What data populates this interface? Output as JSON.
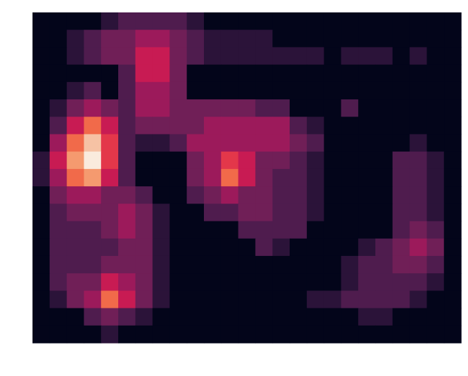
{
  "chart_data": {
    "type": "heatmap",
    "zlim": [
      0,
      10
    ],
    "colorscale": [
      "#03051a",
      "#2b1339",
      "#4f1c4e",
      "#701f57",
      "#9c1a5b",
      "#c81b53",
      "#e3374a",
      "#f16a4a",
      "#f59a6f",
      "#f6c2a4",
      "#faebdd"
    ],
    "values": [
      [
        0,
        0,
        0,
        0,
        1,
        2,
        2,
        2,
        2,
        1,
        0,
        0,
        0,
        0,
        0,
        0,
        0,
        0,
        0,
        0,
        0,
        0,
        0,
        0,
        0
      ],
      [
        0,
        0,
        1,
        2,
        3,
        3,
        4,
        4,
        3,
        2,
        1,
        1,
        1,
        1,
        0,
        0,
        0,
        0,
        0,
        0,
        0,
        0,
        0,
        0,
        0
      ],
      [
        0,
        0,
        1,
        2,
        3,
        3,
        5,
        5,
        3,
        2,
        1,
        1,
        1,
        1,
        1,
        1,
        1,
        0,
        1,
        1,
        1,
        0,
        1,
        0,
        0
      ],
      [
        0,
        0,
        0,
        0,
        0,
        2,
        5,
        5,
        3,
        0,
        0,
        0,
        0,
        0,
        0,
        0,
        0,
        0,
        0,
        0,
        0,
        0,
        0,
        0,
        0
      ],
      [
        0,
        0,
        1,
        2,
        0,
        2,
        4,
        4,
        3,
        0,
        0,
        0,
        0,
        0,
        0,
        0,
        0,
        0,
        0,
        0,
        0,
        0,
        0,
        0,
        0
      ],
      [
        0,
        1,
        3,
        4,
        3,
        2,
        4,
        4,
        3,
        3,
        3,
        3,
        3,
        2,
        2,
        0,
        0,
        0,
        2,
        0,
        0,
        0,
        0,
        0,
        0
      ],
      [
        0,
        2,
        5,
        7,
        5,
        2,
        3,
        3,
        3,
        3,
        4,
        4,
        4,
        4,
        4,
        2,
        1,
        0,
        0,
        0,
        0,
        0,
        0,
        0,
        0
      ],
      [
        0,
        4,
        7,
        9,
        6,
        2,
        1,
        1,
        2,
        4,
        4,
        4,
        4,
        4,
        4,
        3,
        2,
        0,
        0,
        0,
        0,
        0,
        1,
        0,
        0
      ],
      [
        1,
        5,
        8,
        10,
        6,
        2,
        0,
        0,
        0,
        3,
        4,
        6,
        5,
        3,
        3,
        2,
        1,
        0,
        0,
        0,
        0,
        2,
        2,
        1,
        0
      ],
      [
        1,
        4,
        7,
        8,
        5,
        2,
        0,
        0,
        0,
        3,
        4,
        7,
        5,
        3,
        2,
        2,
        1,
        0,
        0,
        0,
        0,
        2,
        2,
        1,
        0
      ],
      [
        0,
        3,
        4,
        4,
        3,
        3,
        2,
        0,
        0,
        2,
        3,
        4,
        3,
        3,
        2,
        2,
        1,
        0,
        0,
        0,
        0,
        2,
        2,
        1,
        0
      ],
      [
        0,
        2,
        3,
        3,
        3,
        4,
        3,
        1,
        0,
        0,
        2,
        2,
        3,
        3,
        2,
        2,
        1,
        0,
        0,
        0,
        0,
        2,
        2,
        1,
        0
      ],
      [
        0,
        2,
        2,
        2,
        3,
        4,
        3,
        1,
        0,
        0,
        0,
        0,
        2,
        2,
        2,
        2,
        0,
        0,
        0,
        0,
        0,
        2,
        3,
        2,
        0
      ],
      [
        0,
        2,
        2,
        2,
        2,
        3,
        3,
        1,
        0,
        0,
        0,
        0,
        0,
        2,
        1,
        0,
        0,
        0,
        0,
        1,
        2,
        3,
        4,
        3,
        0
      ],
      [
        0,
        2,
        2,
        2,
        3,
        3,
        3,
        1,
        0,
        0,
        0,
        0,
        0,
        0,
        0,
        0,
        0,
        0,
        1,
        2,
        2,
        3,
        3,
        2,
        0
      ],
      [
        0,
        2,
        3,
        3,
        5,
        4,
        3,
        1,
        0,
        0,
        0,
        0,
        0,
        0,
        0,
        0,
        0,
        0,
        1,
        2,
        2,
        2,
        2,
        1,
        0
      ],
      [
        0,
        1,
        3,
        4,
        7,
        5,
        3,
        1,
        0,
        0,
        0,
        0,
        0,
        0,
        0,
        0,
        1,
        1,
        2,
        2,
        2,
        2,
        1,
        0,
        0
      ],
      [
        0,
        0,
        0,
        2,
        3,
        2,
        1,
        0,
        0,
        0,
        0,
        0,
        0,
        0,
        0,
        0,
        0,
        0,
        0,
        1,
        1,
        0,
        0,
        0,
        0
      ],
      [
        0,
        0,
        0,
        0,
        1,
        0,
        0,
        0,
        0,
        0,
        0,
        0,
        0,
        0,
        0,
        0,
        0,
        0,
        0,
        0,
        0,
        0,
        0,
        0,
        0
      ]
    ]
  }
}
